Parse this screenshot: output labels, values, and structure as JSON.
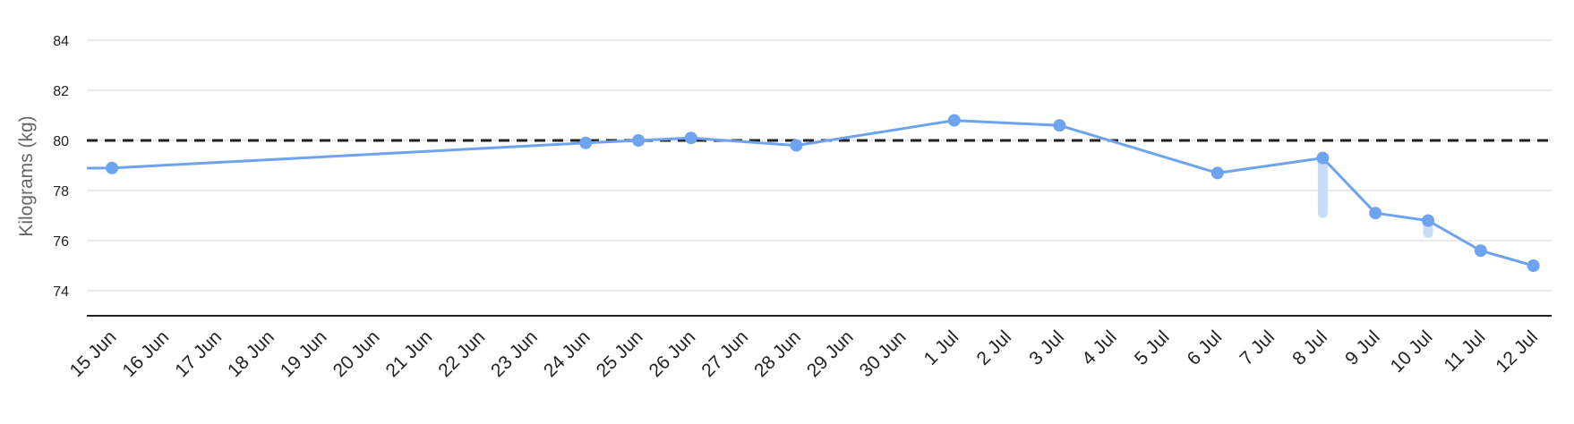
{
  "chart_data": {
    "type": "line",
    "ylabel": "Kilograms (kg)",
    "xlabel": "",
    "ylim": [
      73,
      84.5
    ],
    "yticks": [
      74,
      76,
      78,
      80,
      82,
      84
    ],
    "categories": [
      "15 Jun",
      "16 Jun",
      "17 Jun",
      "18 Jun",
      "19 Jun",
      "20 Jun",
      "21 Jun",
      "22 Jun",
      "23 Jun",
      "24 Jun",
      "25 Jun",
      "26 Jun",
      "27 Jun",
      "28 Jun",
      "29 Jun",
      "30 Jun",
      "1 Jul",
      "2 Jul",
      "3 Jul",
      "4 Jul",
      "5 Jul",
      "6 Jul",
      "7 Jul",
      "8 Jul",
      "9 Jul",
      "10 Jul",
      "11 Jul",
      "12 Jul"
    ],
    "grid": true,
    "target_line": {
      "value": 80,
      "style": "dashed",
      "color": "#222222"
    },
    "series": [
      {
        "color": "#6ea4ef",
        "points": [
          {
            "x": "15 Jun",
            "y": 78.9
          },
          {
            "x": "24 Jun",
            "y": 79.9
          },
          {
            "x": "25 Jun",
            "y": 80.0
          },
          {
            "x": "26 Jun",
            "y": 80.1
          },
          {
            "x": "28 Jun",
            "y": 79.8
          },
          {
            "x": "1 Jul",
            "y": 80.8
          },
          {
            "x": "3 Jul",
            "y": 80.6
          },
          {
            "x": "6 Jul",
            "y": 78.7
          },
          {
            "x": "8 Jul",
            "y": 79.3
          },
          {
            "x": "9 Jul",
            "y": 77.1
          },
          {
            "x": "10 Jul",
            "y": 76.8
          },
          {
            "x": "11 Jul",
            "y": 75.6
          },
          {
            "x": "12 Jul",
            "y": 75.0
          }
        ]
      }
    ],
    "ranges": [
      {
        "x": "8 Jul",
        "from": 79.3,
        "to": 77.1,
        "color": "#c9ddf8"
      },
      {
        "x": "10 Jul",
        "from": 76.8,
        "to": 76.3,
        "color": "#c9ddf8"
      }
    ]
  }
}
